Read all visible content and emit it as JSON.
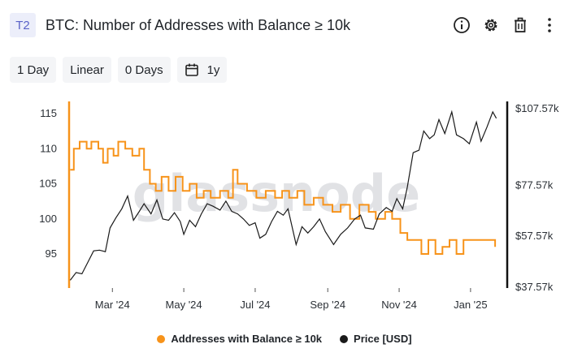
{
  "header": {
    "badge": "T2",
    "title": "BTC: Number of Addresses with Balance ≥ 10k",
    "icons": [
      "info-icon",
      "gear-icon",
      "trash-icon",
      "more-vertical-icon"
    ]
  },
  "toolbar": {
    "resolution": "1 Day",
    "scale": "Linear",
    "moving_average": "0 Days",
    "range": "1y"
  },
  "chart_data": {
    "type": "line",
    "watermark": "glassnode",
    "x_ticks": [
      "Mar '24",
      "May '24",
      "Jul '24",
      "Sep '24",
      "Nov '24",
      "Jan '25"
    ],
    "x_tick_dates": [
      "2024-03-01",
      "2024-05-01",
      "2024-07-01",
      "2024-09-01",
      "2024-11-01",
      "2025-01-01"
    ],
    "x_range": [
      "2024-01-24",
      "2025-01-24"
    ],
    "y_left": {
      "ticks": [
        "115",
        "110",
        "105",
        "100",
        "95"
      ],
      "tick_values": [
        115,
        110,
        105,
        100,
        95
      ],
      "range": [
        90.5,
        116
      ]
    },
    "y_right": {
      "ticks": [
        "$107.57k",
        "$77.57k",
        "$57.57k",
        "$37.57k"
      ],
      "tick_values": [
        107.57,
        77.57,
        57.57,
        37.57
      ],
      "unit": "k USD"
    },
    "series": [
      {
        "name": "Addresses with Balance ≥ 10k",
        "color": "#f7931a",
        "axis": "left",
        "points": [
          [
            "2024-01-25",
            107
          ],
          [
            "2024-01-28",
            110
          ],
          [
            "2024-02-02",
            111
          ],
          [
            "2024-02-08",
            110
          ],
          [
            "2024-02-12",
            111
          ],
          [
            "2024-02-18",
            110
          ],
          [
            "2024-02-22",
            108
          ],
          [
            "2024-02-26",
            110
          ],
          [
            "2024-03-02",
            109
          ],
          [
            "2024-03-06",
            111
          ],
          [
            "2024-03-12",
            110
          ],
          [
            "2024-03-18",
            109
          ],
          [
            "2024-03-24",
            110
          ],
          [
            "2024-03-28",
            107
          ],
          [
            "2024-04-02",
            105
          ],
          [
            "2024-04-07",
            104
          ],
          [
            "2024-04-12",
            106
          ],
          [
            "2024-04-18",
            104
          ],
          [
            "2024-04-24",
            106
          ],
          [
            "2024-04-30",
            104
          ],
          [
            "2024-05-06",
            105
          ],
          [
            "2024-05-12",
            103
          ],
          [
            "2024-05-18",
            104
          ],
          [
            "2024-05-24",
            103
          ],
          [
            "2024-06-01",
            104
          ],
          [
            "2024-06-08",
            103
          ],
          [
            "2024-06-12",
            107
          ],
          [
            "2024-06-16",
            105
          ],
          [
            "2024-06-24",
            104
          ],
          [
            "2024-07-02",
            103
          ],
          [
            "2024-07-10",
            104
          ],
          [
            "2024-07-18",
            103
          ],
          [
            "2024-07-24",
            104
          ],
          [
            "2024-07-30",
            103
          ],
          [
            "2024-08-06",
            104
          ],
          [
            "2024-08-12",
            102
          ],
          [
            "2024-08-20",
            103
          ],
          [
            "2024-08-28",
            102
          ],
          [
            "2024-09-05",
            101
          ],
          [
            "2024-09-12",
            102
          ],
          [
            "2024-09-20",
            100
          ],
          [
            "2024-09-28",
            102
          ],
          [
            "2024-10-06",
            101
          ],
          [
            "2024-10-12",
            100
          ],
          [
            "2024-10-20",
            101
          ],
          [
            "2024-10-26",
            100
          ],
          [
            "2024-11-02",
            98
          ],
          [
            "2024-11-08",
            97
          ],
          [
            "2024-11-14",
            97
          ],
          [
            "2024-11-20",
            95
          ],
          [
            "2024-11-26",
            97
          ],
          [
            "2024-12-02",
            95
          ],
          [
            "2024-12-08",
            96
          ],
          [
            "2024-12-14",
            97
          ],
          [
            "2024-12-20",
            95
          ],
          [
            "2024-12-26",
            97
          ],
          [
            "2025-01-02",
            97
          ],
          [
            "2025-01-10",
            97
          ],
          [
            "2025-01-18",
            97
          ],
          [
            "2025-01-22",
            96
          ]
        ]
      },
      {
        "name": "Price [USD]",
        "color": "#1a1a1a",
        "axis": "right",
        "points": [
          [
            "2024-01-25",
            40.0
          ],
          [
            "2024-01-30",
            43.0
          ],
          [
            "2024-02-04",
            42.5
          ],
          [
            "2024-02-09",
            47.0
          ],
          [
            "2024-02-14",
            51.5
          ],
          [
            "2024-02-19",
            51.8
          ],
          [
            "2024-02-24",
            51.2
          ],
          [
            "2024-02-28",
            60.5
          ],
          [
            "2024-03-04",
            64.5
          ],
          [
            "2024-03-09",
            68.0
          ],
          [
            "2024-03-14",
            73.0
          ],
          [
            "2024-03-19",
            63.5
          ],
          [
            "2024-03-24",
            67.0
          ],
          [
            "2024-03-28",
            70.0
          ],
          [
            "2024-04-03",
            66.0
          ],
          [
            "2024-04-08",
            71.5
          ],
          [
            "2024-04-13",
            64.0
          ],
          [
            "2024-04-18",
            63.5
          ],
          [
            "2024-04-23",
            66.5
          ],
          [
            "2024-04-28",
            63.0
          ],
          [
            "2024-05-01",
            58.0
          ],
          [
            "2024-05-06",
            63.5
          ],
          [
            "2024-05-11",
            61.0
          ],
          [
            "2024-05-16",
            66.0
          ],
          [
            "2024-05-21",
            70.0
          ],
          [
            "2024-05-26",
            69.0
          ],
          [
            "2024-06-01",
            67.5
          ],
          [
            "2024-06-06",
            71.0
          ],
          [
            "2024-06-11",
            67.0
          ],
          [
            "2024-06-16",
            66.0
          ],
          [
            "2024-06-21",
            64.0
          ],
          [
            "2024-06-26",
            61.5
          ],
          [
            "2024-07-01",
            62.5
          ],
          [
            "2024-07-05",
            56.5
          ],
          [
            "2024-07-10",
            58.0
          ],
          [
            "2024-07-15",
            63.0
          ],
          [
            "2024-07-20",
            67.0
          ],
          [
            "2024-07-25",
            65.5
          ],
          [
            "2024-07-29",
            68.0
          ],
          [
            "2024-08-05",
            54.0
          ],
          [
            "2024-08-10",
            61.0
          ],
          [
            "2024-08-15",
            58.5
          ],
          [
            "2024-08-20",
            61.0
          ],
          [
            "2024-08-25",
            64.0
          ],
          [
            "2024-08-30",
            59.0
          ],
          [
            "2024-09-06",
            54.0
          ],
          [
            "2024-09-12",
            58.0
          ],
          [
            "2024-09-18",
            60.5
          ],
          [
            "2024-09-24",
            64.0
          ],
          [
            "2024-09-29",
            65.5
          ],
          [
            "2024-10-03",
            60.5
          ],
          [
            "2024-10-10",
            60.0
          ],
          [
            "2024-10-15",
            66.0
          ],
          [
            "2024-10-21",
            68.5
          ],
          [
            "2024-10-26",
            67.0
          ],
          [
            "2024-10-30",
            72.0
          ],
          [
            "2024-11-04",
            68.0
          ],
          [
            "2024-11-08",
            76.5
          ],
          [
            "2024-11-13",
            90.0
          ],
          [
            "2024-11-18",
            91.0
          ],
          [
            "2024-11-22",
            98.5
          ],
          [
            "2024-11-27",
            95.5
          ],
          [
            "2024-12-01",
            97.0
          ],
          [
            "2024-12-05",
            103.0
          ],
          [
            "2024-12-10",
            97.5
          ],
          [
            "2024-12-16",
            106.0
          ],
          [
            "2024-12-20",
            97.0
          ],
          [
            "2024-12-26",
            95.5
          ],
          [
            "2024-12-31",
            93.5
          ],
          [
            "2025-01-06",
            102.0
          ],
          [
            "2025-01-10",
            94.5
          ],
          [
            "2025-01-15",
            100.0
          ],
          [
            "2025-01-20",
            106.0
          ],
          [
            "2025-01-23",
            103.5
          ]
        ]
      }
    ],
    "legend_position": "bottom-center",
    "grid": false
  }
}
